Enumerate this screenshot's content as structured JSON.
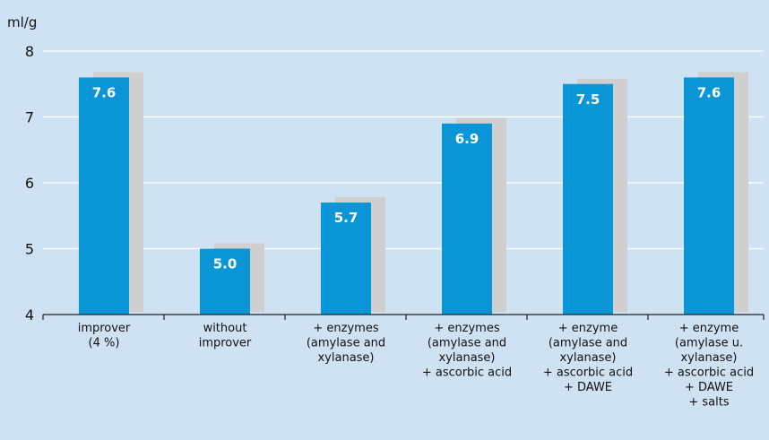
{
  "chart_data": {
    "type": "bar",
    "ylabel": "ml/g",
    "ylim": [
      4,
      8
    ],
    "yticks": [
      4,
      5,
      6,
      7,
      8
    ],
    "grid": true,
    "categories": [
      [
        "improver",
        "(4 %)"
      ],
      [
        "without",
        "improver"
      ],
      [
        "+ enzymes",
        "(amylase and",
        "xylanase)"
      ],
      [
        "+ enzymes",
        "(amylase and",
        "xylanase)",
        "+ ascorbic acid"
      ],
      [
        "+ enzyme",
        "(amylase and",
        "xylanase)",
        "+ ascorbic acid",
        "+ DAWE"
      ],
      [
        "+ enzyme",
        "(amylase u.",
        "xylanase)",
        "+ ascorbic acid",
        "+ DAWE",
        "+ salts"
      ]
    ],
    "values": [
      7.6,
      5.0,
      5.7,
      6.9,
      7.5,
      7.6
    ],
    "value_labels": [
      "7.6",
      "5.0",
      "5.7",
      "6.9",
      "7.5",
      "7.6"
    ],
    "colors": {
      "background": "#cfe2f3",
      "bar": "#0a96d6",
      "shadow": "#cfcfcf",
      "grid": "#ffffff",
      "axis": "#222222"
    }
  }
}
